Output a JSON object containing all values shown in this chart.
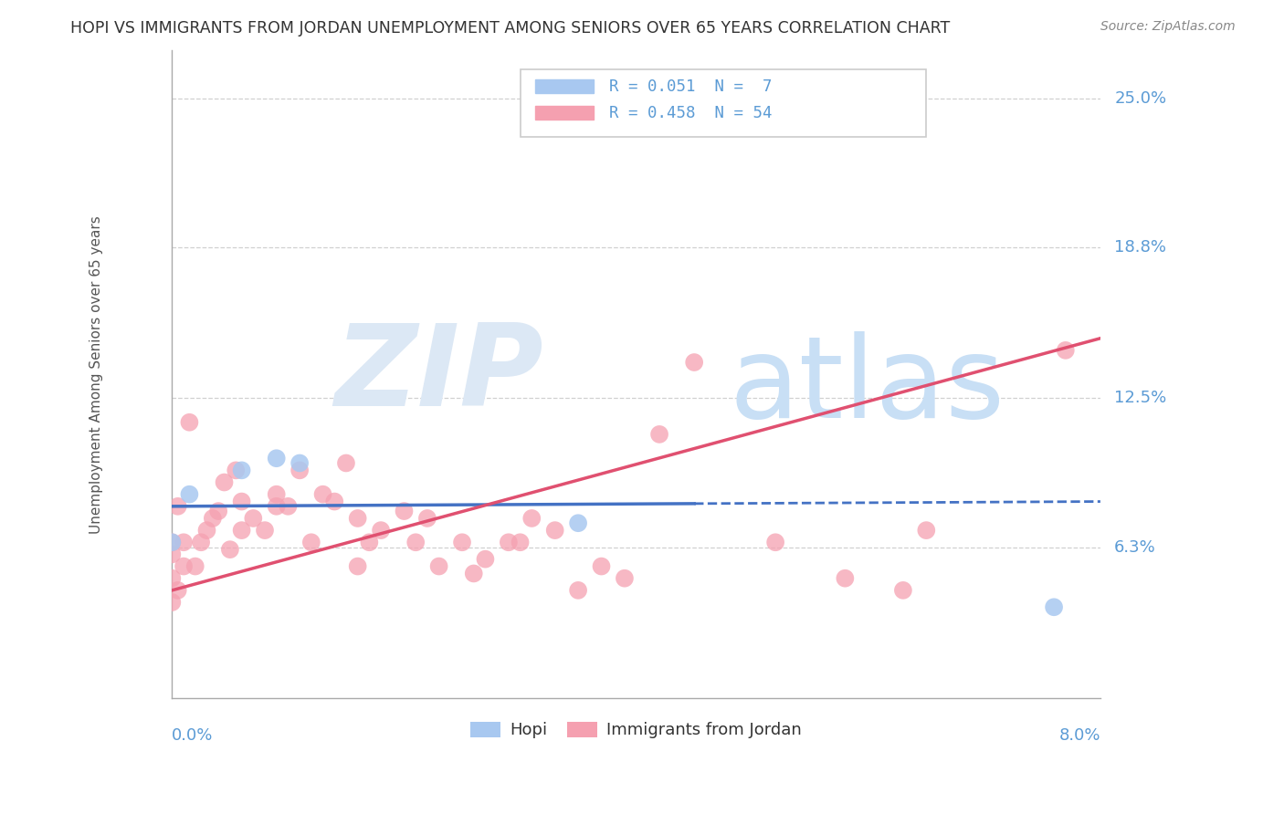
{
  "title": "HOPI VS IMMIGRANTS FROM JORDAN UNEMPLOYMENT AMONG SENIORS OVER 65 YEARS CORRELATION CHART",
  "source_text": "Source: ZipAtlas.com",
  "ylabel": "Unemployment Among Seniors over 65 years",
  "ytick_labels": [
    "6.3%",
    "12.5%",
    "18.8%",
    "25.0%"
  ],
  "ytick_values": [
    6.3,
    12.5,
    18.8,
    25.0
  ],
  "xlim": [
    0.0,
    8.0
  ],
  "ylim": [
    0.0,
    27.0
  ],
  "hopi_R": 0.051,
  "hopi_N": 7,
  "jordan_R": 0.458,
  "jordan_N": 54,
  "hopi_color": "#a8c8f0",
  "jordan_color": "#f5a0b0",
  "hopi_line_color": "#4472c4",
  "jordan_line_color": "#e05070",
  "legend_hopi_label": "Hopi",
  "legend_jordan_label": "Immigrants from Jordan",
  "hopi_scatter_x": [
    0.0,
    0.15,
    0.6,
    0.9,
    1.1,
    3.5,
    7.6
  ],
  "hopi_scatter_y": [
    6.5,
    8.5,
    9.5,
    10.0,
    9.8,
    7.3,
    3.8
  ],
  "jordan_scatter_x": [
    0.0,
    0.0,
    0.0,
    0.0,
    0.05,
    0.05,
    0.1,
    0.1,
    0.15,
    0.2,
    0.25,
    0.3,
    0.35,
    0.4,
    0.45,
    0.5,
    0.55,
    0.6,
    0.6,
    0.7,
    0.8,
    0.9,
    0.9,
    1.0,
    1.1,
    1.2,
    1.3,
    1.4,
    1.5,
    1.6,
    1.6,
    1.7,
    1.8,
    2.0,
    2.1,
    2.2,
    2.3,
    2.5,
    2.6,
    2.7,
    2.9,
    3.0,
    3.1,
    3.3,
    3.5,
    3.7,
    3.9,
    4.2,
    4.5,
    5.2,
    5.8,
    6.3,
    6.5,
    7.7
  ],
  "jordan_scatter_y": [
    4.0,
    5.0,
    6.0,
    6.5,
    4.5,
    8.0,
    5.5,
    6.5,
    11.5,
    5.5,
    6.5,
    7.0,
    7.5,
    7.8,
    9.0,
    6.2,
    9.5,
    7.0,
    8.2,
    7.5,
    7.0,
    8.0,
    8.5,
    8.0,
    9.5,
    6.5,
    8.5,
    8.2,
    9.8,
    7.5,
    5.5,
    6.5,
    7.0,
    7.8,
    6.5,
    7.5,
    5.5,
    6.5,
    5.2,
    5.8,
    6.5,
    6.5,
    7.5,
    7.0,
    4.5,
    5.5,
    5.0,
    11.0,
    14.0,
    6.5,
    5.0,
    4.5,
    7.0,
    14.5
  ],
  "hopi_line_x0": 0.0,
  "hopi_line_x1": 8.0,
  "hopi_line_y0": 8.0,
  "hopi_line_y1": 8.2,
  "hopi_solid_x1": 4.5,
  "jordan_line_x0": 0.0,
  "jordan_line_x1": 8.0,
  "jordan_line_y0": 4.5,
  "jordan_line_y1": 15.0
}
